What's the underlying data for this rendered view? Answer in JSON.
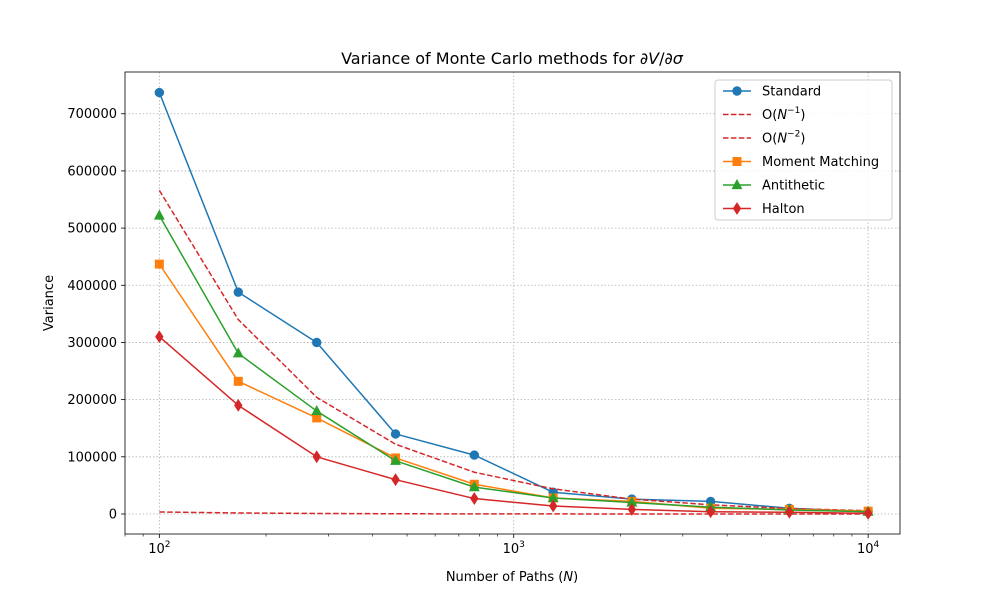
{
  "chart_data": {
    "type": "line",
    "title": "Variance of Monte Carlo methods for ∂V/∂σ",
    "xlabel": "Number of Paths (N)",
    "ylabel": "Variance",
    "xscale": "log",
    "xlim": [
      80,
      12300
    ],
    "ylim": [
      -35000,
      773000
    ],
    "x_ticks": [
      100,
      1000,
      10000
    ],
    "x_tick_labels": [
      {
        "base": "10",
        "exp": "2"
      },
      {
        "base": "10",
        "exp": "3"
      },
      {
        "base": "10",
        "exp": "4"
      }
    ],
    "y_ticks": [
      0,
      100000,
      200000,
      300000,
      400000,
      500000,
      600000,
      700000
    ],
    "y_tick_labels": [
      "0",
      "100000",
      "200000",
      "300000",
      "400000",
      "500000",
      "600000",
      "700000"
    ],
    "grid": true,
    "legend_position": "top-right",
    "x": [
      100,
      167,
      278,
      464,
      774,
      1292,
      2154,
      3594,
      5995,
      10000
    ],
    "series": [
      {
        "name": "Standard",
        "color": "#1f77b4",
        "marker": "circle",
        "dashed": false,
        "values": [
          737000,
          388000,
          300000,
          140000,
          103000,
          38000,
          26000,
          22000,
          10000,
          4000
        ]
      },
      {
        "name": "O(N⁻¹)",
        "color": "#d62728",
        "marker": "none",
        "dashed": true,
        "values": [
          3500,
          1800,
          900,
          400,
          200,
          100,
          50,
          20,
          10,
          5
        ]
      },
      {
        "name": "O(N⁻²)",
        "color": "#d62728",
        "marker": "none",
        "dashed": true,
        "values": [
          566000,
          340000,
          204000,
          122000,
          73000,
          44000,
          26000,
          16000,
          9500,
          5700
        ]
      },
      {
        "name": "Moment Matching",
        "color": "#ff7f0e",
        "marker": "square",
        "dashed": false,
        "values": [
          437000,
          232000,
          168000,
          98000,
          52000,
          28000,
          22000,
          10000,
          8000,
          5000
        ]
      },
      {
        "name": "Antithetic",
        "color": "#2ca02c",
        "marker": "triangle",
        "dashed": false,
        "values": [
          522000,
          281000,
          180000,
          93000,
          47000,
          28000,
          20000,
          12000,
          7000,
          4000
        ]
      },
      {
        "name": "Halton",
        "color": "#d62728",
        "marker": "diamond",
        "dashed": false,
        "values": [
          310000,
          190000,
          100000,
          60000,
          27000,
          14000,
          8000,
          4000,
          3000,
          1000
        ]
      }
    ],
    "legend_labels": [
      {
        "base": "Standard",
        "sup": ""
      },
      {
        "base": "O(N",
        "sup": "−1",
        "tail": ")"
      },
      {
        "base": "O(N",
        "sup": "−2",
        "tail": ")"
      },
      {
        "base": "Moment Matching",
        "sup": ""
      },
      {
        "base": "Antithetic",
        "sup": ""
      },
      {
        "base": "Halton",
        "sup": ""
      }
    ]
  }
}
